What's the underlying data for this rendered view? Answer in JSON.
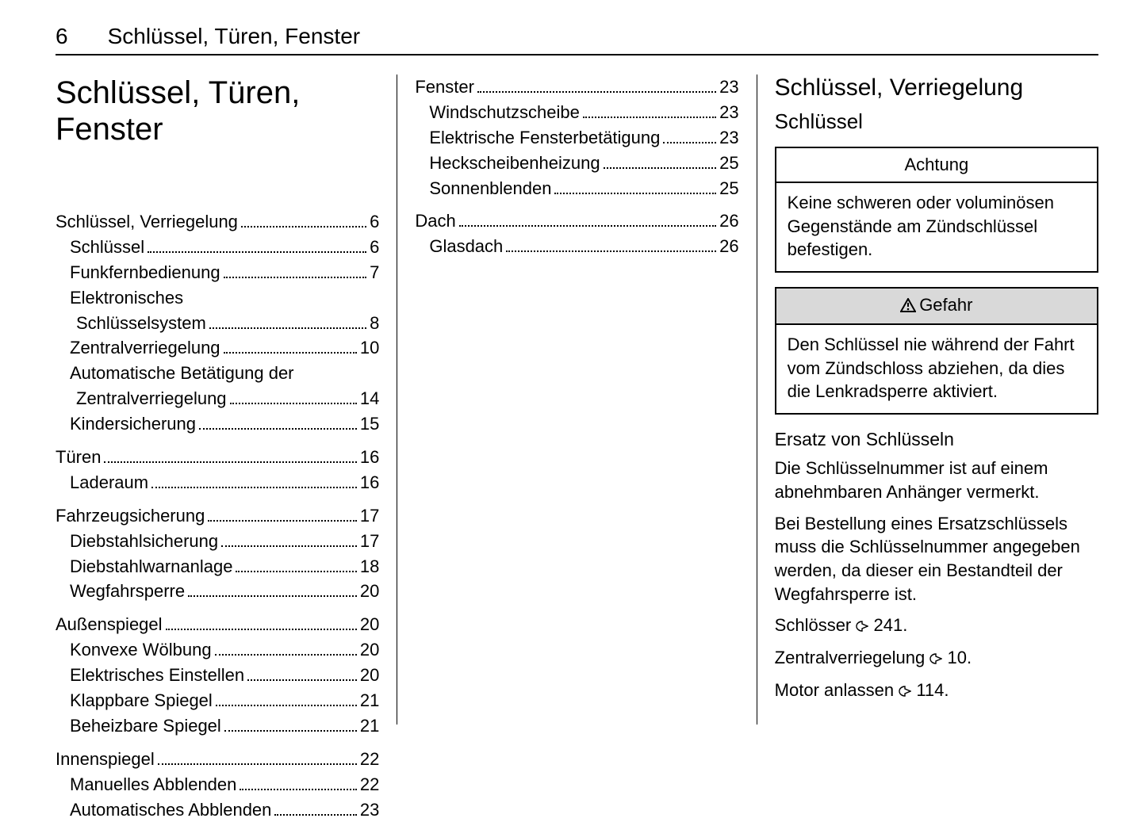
{
  "page_number": "6",
  "running_title": "Schlüssel, Türen, Fenster",
  "chapter_title": "Schlüssel, Türen, Fenster",
  "toc_col1": [
    {
      "type": "group",
      "items": [
        {
          "label": "Schlüssel, Verriegelung",
          "page": "6",
          "level": 0
        },
        {
          "label": "Schlüssel",
          "page": "6",
          "level": 1
        },
        {
          "label": "Funkfernbedienung",
          "page": "7",
          "level": 1
        },
        {
          "label_lines": [
            "Elektronisches",
            "Schlüsselsystem"
          ],
          "page": "8",
          "level": 1
        },
        {
          "label": "Zentralverriegelung",
          "page": "10",
          "level": 1
        },
        {
          "label_lines": [
            "Automatische Betätigung der",
            "Zentralverriegelung"
          ],
          "page": "14",
          "level": 1
        },
        {
          "label": "Kindersicherung",
          "page": "15",
          "level": 1
        }
      ]
    },
    {
      "type": "group",
      "items": [
        {
          "label": "Türen",
          "page": "16",
          "level": 0
        },
        {
          "label": "Laderaum",
          "page": "16",
          "level": 1
        }
      ]
    },
    {
      "type": "group",
      "items": [
        {
          "label": "Fahrzeugsicherung",
          "page": "17",
          "level": 0
        },
        {
          "label": "Diebstahlsicherung",
          "page": "17",
          "level": 1
        },
        {
          "label": "Diebstahlwarnanlage",
          "page": "18",
          "level": 1
        },
        {
          "label": "Wegfahrsperre",
          "page": "20",
          "level": 1
        }
      ]
    },
    {
      "type": "group",
      "items": [
        {
          "label": "Außenspiegel",
          "page": "20",
          "level": 0
        },
        {
          "label": "Konvexe Wölbung",
          "page": "20",
          "level": 1
        },
        {
          "label": "Elektrisches Einstellen",
          "page": "20",
          "level": 1
        },
        {
          "label": "Klappbare Spiegel",
          "page": "21",
          "level": 1
        },
        {
          "label": "Beheizbare Spiegel",
          "page": "21",
          "level": 1
        }
      ]
    },
    {
      "type": "group",
      "items": [
        {
          "label": "Innenspiegel",
          "page": "22",
          "level": 0
        },
        {
          "label": "Manuelles Abblenden",
          "page": "22",
          "level": 1
        },
        {
          "label": "Automatisches Abblenden",
          "page": "23",
          "level": 1
        }
      ]
    }
  ],
  "toc_col2": [
    {
      "type": "group",
      "items": [
        {
          "label": "Fenster",
          "page": "23",
          "level": 0
        },
        {
          "label": "Windschutzscheibe",
          "page": "23",
          "level": 1
        },
        {
          "label": "Elektrische Fensterbetätigung",
          "page": "23",
          "level": 1
        },
        {
          "label": "Heckscheibenheizung",
          "page": "25",
          "level": 1
        },
        {
          "label": "Sonnenblenden",
          "page": "25",
          "level": 1
        }
      ]
    },
    {
      "type": "group",
      "items": [
        {
          "label": "Dach",
          "page": "26",
          "level": 0
        },
        {
          "label": "Glasdach",
          "page": "26",
          "level": 1
        }
      ]
    }
  ],
  "col3": {
    "section_title": "Schlüssel, Verriegelung",
    "subsection_title": "Schlüssel",
    "attention": {
      "title": "Achtung",
      "body": "Keine schweren oder voluminö­sen Gegenstände am Zünd­schlüssel befestigen."
    },
    "danger": {
      "title": "Gefahr",
      "body": "Den Schlüssel nie während der Fahrt vom Zündschloss abziehen, da dies die Lenkradsperre akti­viert."
    },
    "replacement_heading": "Ersatz von Schlüsseln",
    "p1": "Die Schlüsselnummer ist auf einem abnehmbaren Anhänger vermerkt.",
    "p2": "Bei Bestellung eines Ersatzschlüs­sels muss die Schlüsselnummer angegeben werden, da dieser ein Bestandteil der Wegfahrsperre ist.",
    "xref1_label": "Schlösser",
    "xref1_page": "241",
    "xref2_label": "Zentralverriegelung",
    "xref2_page": "10",
    "xref3_label": "Motor anlassen",
    "xref3_page": "114"
  }
}
